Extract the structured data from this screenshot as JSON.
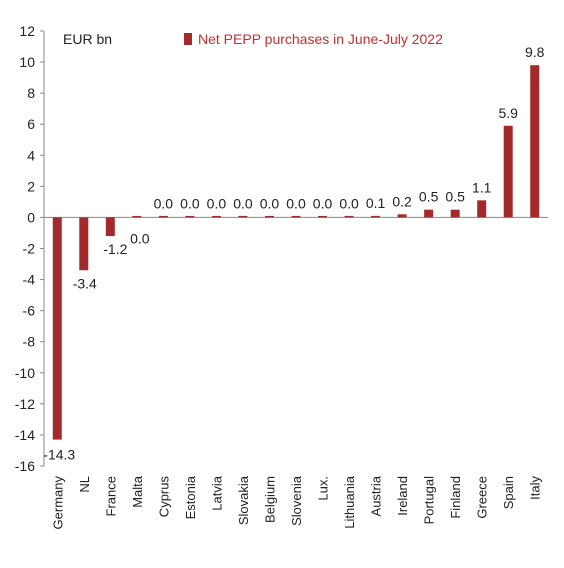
{
  "chart_data": {
    "type": "bar",
    "unit_label": "EUR bn",
    "categories": [
      "Germany",
      "NL",
      "France",
      "Malta",
      "Cyprus",
      "Estonia",
      "Latvia",
      "Slovakia",
      "Belgium",
      "Slovenia",
      "Lux.",
      "Lithuania",
      "Austria",
      "Ireland",
      "Portugal",
      "Finland",
      "Greece",
      "Spain",
      "Italy"
    ],
    "series": [
      {
        "name": "Net PEPP purchases in June-July 2022",
        "values": [
          -14.3,
          -3.4,
          -1.2,
          0.0,
          0.0,
          0.0,
          0.0,
          0.0,
          0.0,
          0.0,
          0.0,
          0.0,
          0.1,
          0.2,
          0.5,
          0.5,
          1.1,
          5.9,
          9.8
        ],
        "labels": [
          "-14.3",
          "-3.4",
          "-1.2",
          "0.0",
          "0.0",
          "0.0",
          "0.0",
          "0.0",
          "0.0",
          "0.0",
          "0.0",
          "0.0",
          "0.1",
          "0.2",
          "0.5",
          "0.5",
          "1.1",
          "5.9",
          "9.8"
        ]
      }
    ],
    "ylim": [
      -16,
      12
    ],
    "yticks": [
      "-16",
      "-14",
      "-12",
      "-10",
      "-8",
      "-6",
      "-4",
      "-2",
      "0",
      "2",
      "4",
      "6",
      "8",
      "10",
      "12"
    ],
    "grid": false,
    "legend_position": "top-center",
    "colors": {
      "bar": "#a32a2a",
      "axis": "#888888"
    }
  }
}
